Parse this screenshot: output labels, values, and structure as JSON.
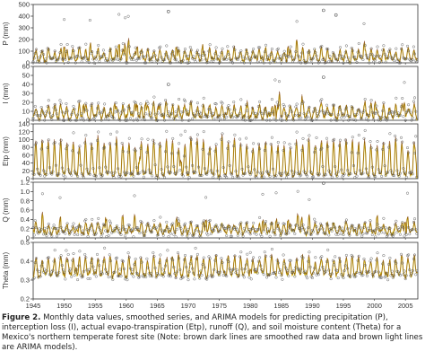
{
  "figure": {
    "caption_label": "Figure 2.",
    "caption_text": "Monthly data values, smoothed series, and ARIMA models for predicting precipitation (P), interception loss (I), actual evapo-transpiration (Etp), runoff (Q), and soil moisture content (Theta) for a Mexico's northern temperate forest site (Note: brown dark lines are smoothed raw data and brown light lines are ARIMA models).",
    "shared_xlabel": "YEAR (1945-2007)",
    "shared_x_ticks": [
      "1945",
      "1950",
      "1955",
      "1960",
      "1965",
      "1970",
      "1975",
      "1980",
      "1985",
      "1990",
      "1995",
      "2000",
      "2005"
    ]
  },
  "colors": {
    "data_markers": "#555555",
    "smoothed_line": "#7a3a10",
    "arima_line": "#d8c21a",
    "axis": "#333333"
  },
  "chart_data": [
    {
      "type": "line",
      "ylabel": "P (mm)",
      "xlim": [
        1945,
        2007
      ],
      "ylim": [
        0,
        500
      ],
      "yticks": [
        "0",
        "100",
        "200",
        "300",
        "400",
        "500"
      ],
      "x_ticks": [],
      "series": [],
      "shape": {
        "base": 25,
        "amp": 95,
        "noise": 35,
        "outlier_level": 420,
        "seed": 11
      },
      "notable_points": [
        {
          "x": 1966.8,
          "y": 440
        },
        {
          "x": 1991.8,
          "y": 450
        },
        {
          "x": 1993.8,
          "y": 410
        }
      ]
    },
    {
      "type": "line",
      "ylabel": "I (mm)",
      "xlim": [
        1945,
        2007
      ],
      "ylim": [
        0,
        60
      ],
      "yticks": [
        "0",
        "10",
        "20",
        "30",
        "40",
        "50",
        "60"
      ],
      "x_ticks": [],
      "series": [],
      "shape": {
        "base": 4,
        "amp": 14,
        "noise": 6,
        "outlier_level": 47,
        "seed": 23
      },
      "notable_points": [
        {
          "x": 1966.8,
          "y": 40
        },
        {
          "x": 1991.8,
          "y": 48
        }
      ]
    },
    {
      "type": "line",
      "ylabel": "Etp (mm)",
      "xlim": [
        1945,
        2007
      ],
      "ylim": [
        0,
        140
      ],
      "yticks": [
        "0",
        "20",
        "40",
        "60",
        "80",
        "100",
        "120",
        "140"
      ],
      "x_ticks": [],
      "series": [],
      "shape": {
        "base": 10,
        "amp": 92,
        "noise": 8,
        "outlier_level": 118,
        "seed": 37
      },
      "notable_points": []
    },
    {
      "type": "line",
      "ylabel": "Q (mm)",
      "xlim": [
        1945,
        2007
      ],
      "ylim": [
        0,
        1.2
      ],
      "yticks": [
        "0",
        "0.2",
        "0.4",
        "0.6",
        "0.8",
        "1.0",
        "1.2"
      ],
      "x_ticks": [],
      "series": [],
      "shape": {
        "base": 0.12,
        "amp": 0.2,
        "noise": 0.1,
        "outlier_level": 1.05,
        "seed": 41
      },
      "notable_points": [
        {
          "x": 1991.8,
          "y": 1.18
        }
      ]
    },
    {
      "type": "line",
      "ylabel": "Theta (mm)",
      "xlim": [
        1945,
        2007
      ],
      "ylim": [
        0.2,
        0.5
      ],
      "yticks": [
        "0.2",
        "0.3",
        "0.4",
        "0.5"
      ],
      "x_ticks": [
        "1945",
        "1950",
        "1955",
        "1960",
        "1965",
        "1970",
        "1975",
        "1980",
        "1985",
        "1990",
        "1995",
        "2000",
        "2005"
      ],
      "xlabel": "YEAR (1945-2007)",
      "series": [],
      "shape": {
        "base": 0.33,
        "amp": 0.1,
        "noise": 0.03,
        "outlier_level": 0.48,
        "seed": 53
      },
      "notable_points": []
    }
  ]
}
